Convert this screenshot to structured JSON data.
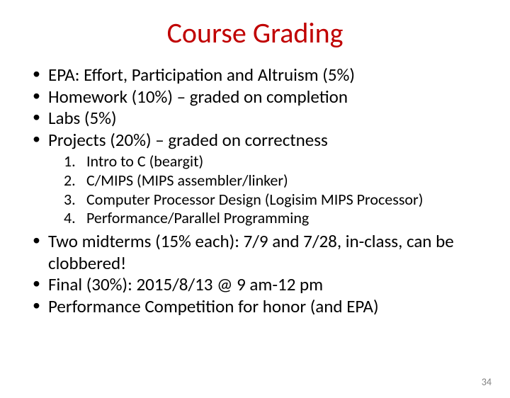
{
  "title": "Course Grading",
  "bullets": {
    "b1": "EPA: Effort, Participation and Altruism (5%)",
    "b2": "Homework (10%) – graded on completion",
    "b3": "Labs (5%)",
    "b4": "Projects (20%) – graded on correctness",
    "b5": "Two midterms (15% each): 7/9 and 7/28, in-class, can be clobbered!",
    "b6": "Final (30%): 2015/8/13 @ 9 am-12 pm",
    "b7": "Performance Competition for honor (and EPA)"
  },
  "projects": {
    "n1": "1.",
    "p1": "Intro to C (beargit)",
    "n2": "2.",
    "p2": "C/MIPS (MIPS assembler/linker)",
    "n3": "3.",
    "p3": "Computer Processor Design (Logisim MIPS Processor)",
    "n4": "4.",
    "p4": "Performance/Parallel Programming"
  },
  "pageNumber": "34"
}
